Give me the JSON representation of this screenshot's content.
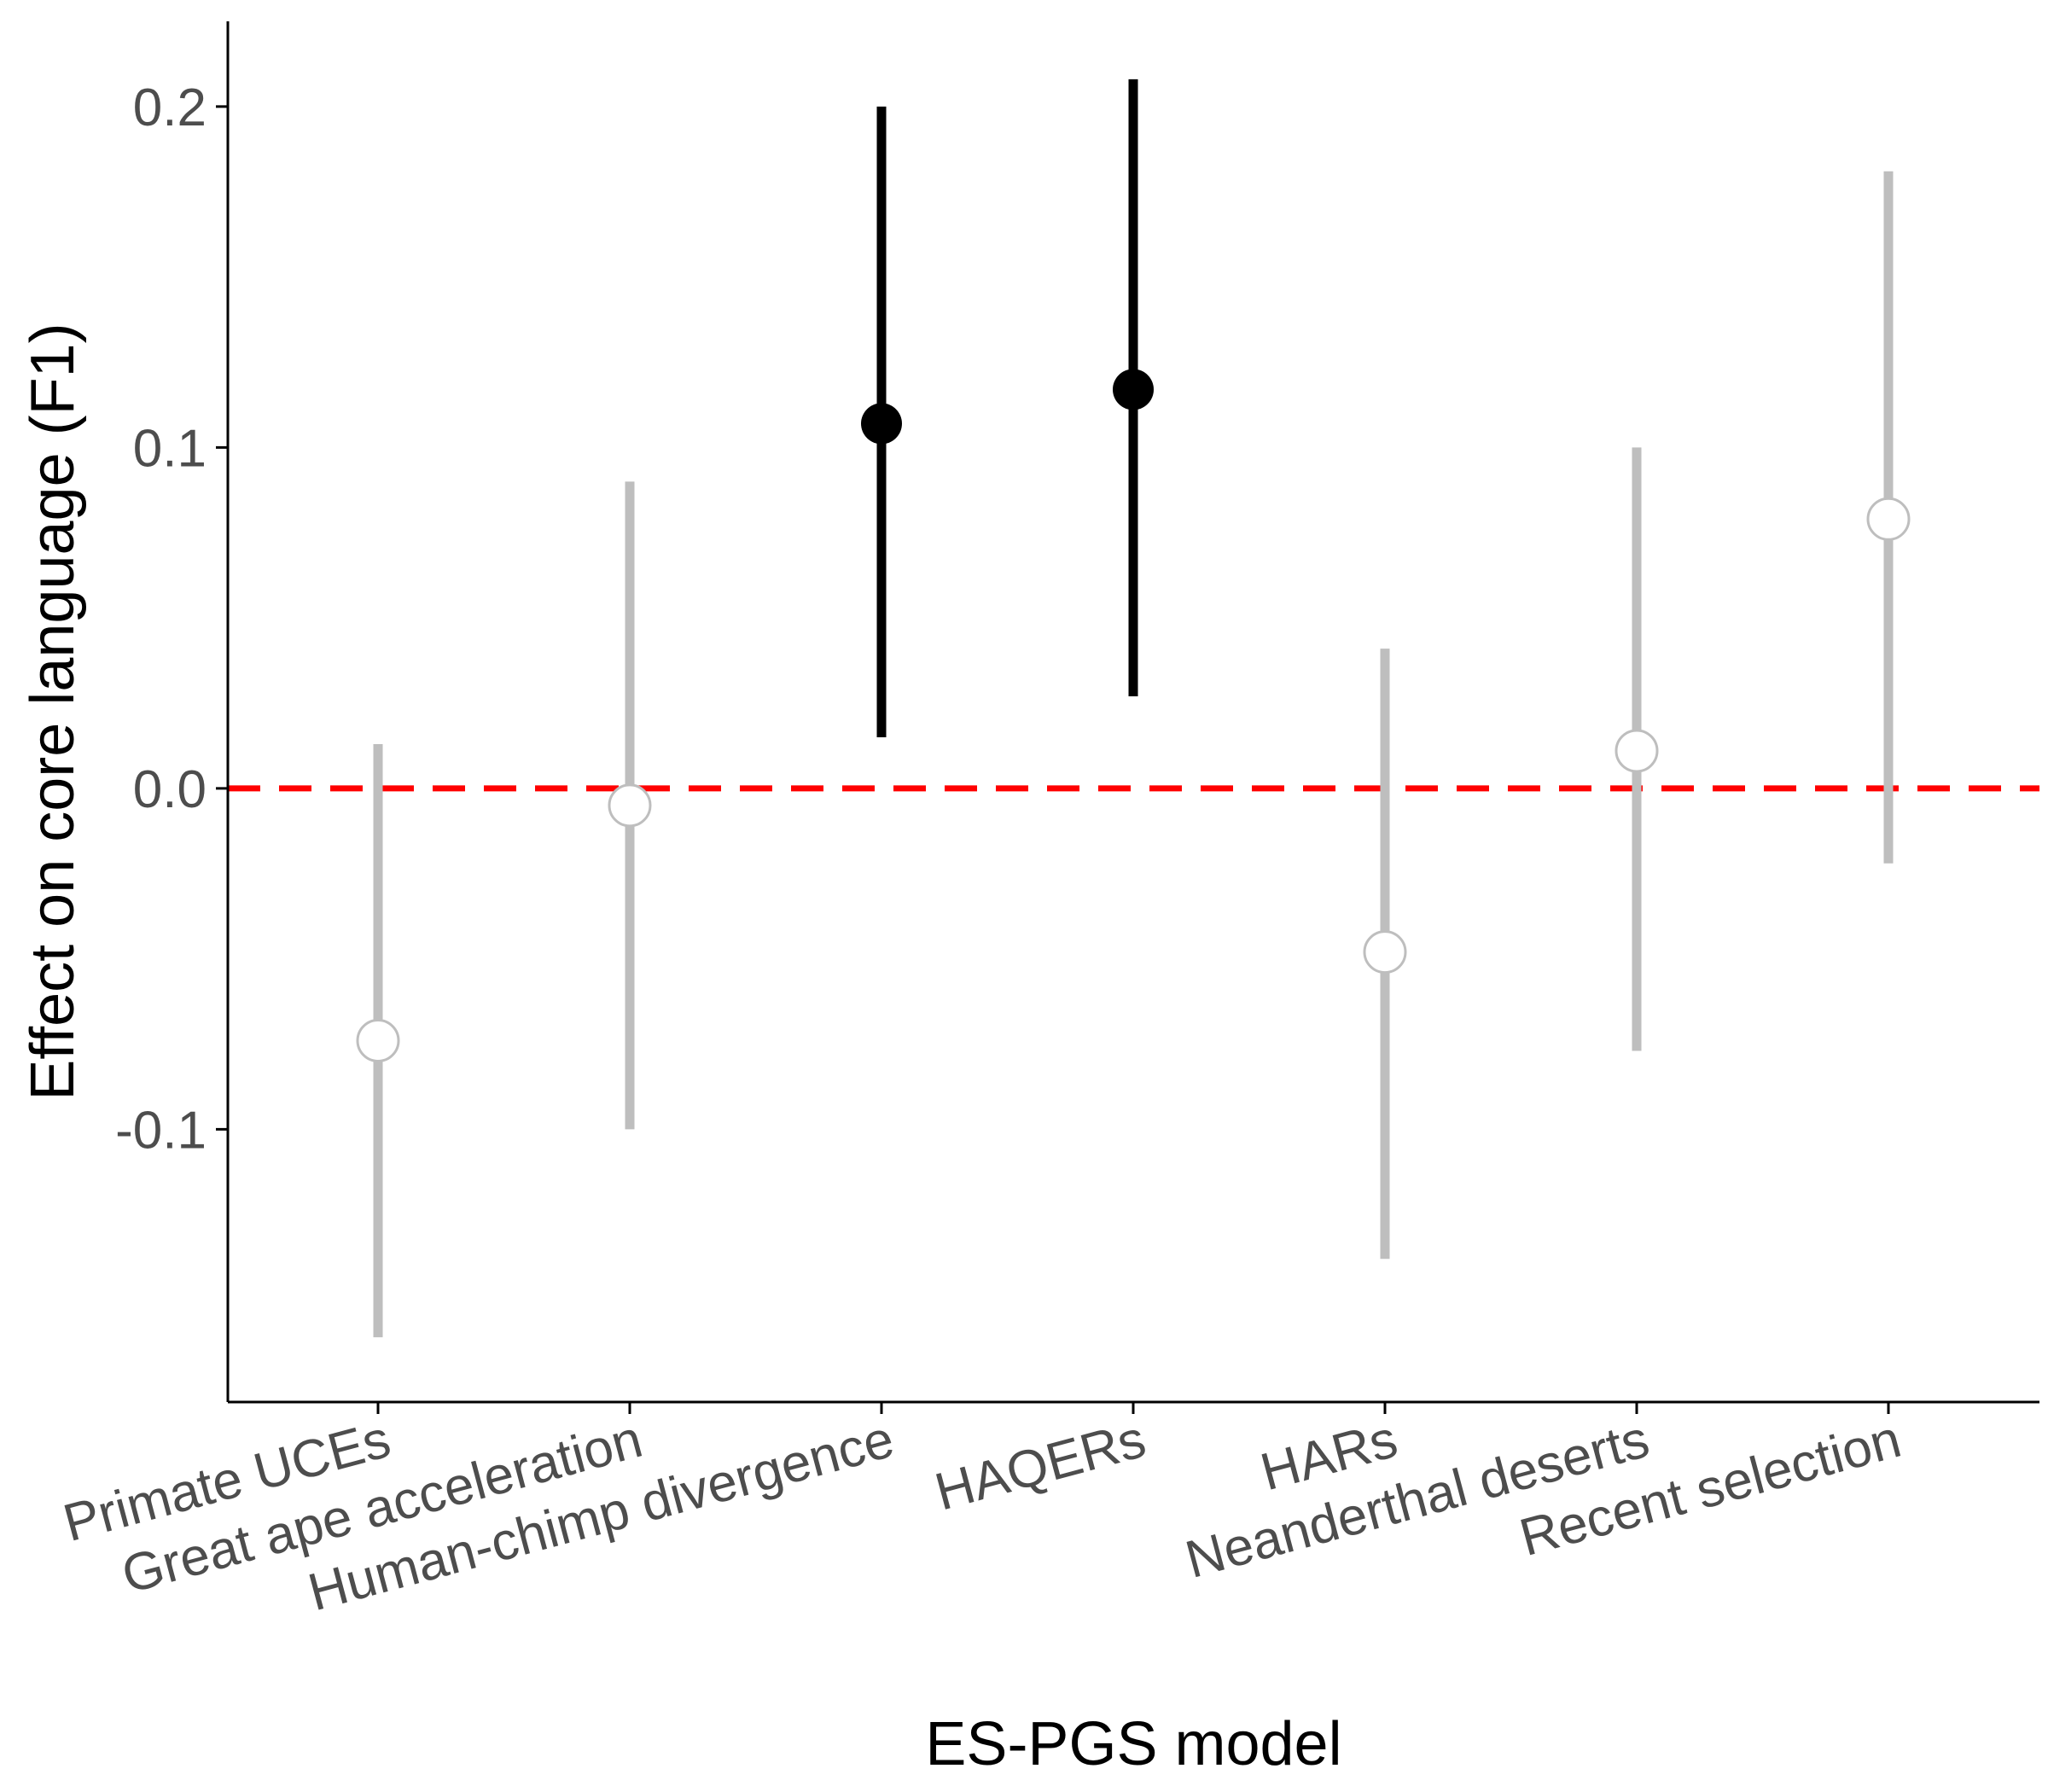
{
  "chart_data": {
    "type": "scatter",
    "xlabel": "ES-PGS model",
    "ylabel": "Effect on core language (F1)",
    "ylim": [
      -0.18,
      0.225
    ],
    "yticks": [
      -0.1,
      0.0,
      0.1,
      0.2
    ],
    "ytick_labels": [
      "-0.1",
      "0.0",
      "0.1",
      "0.2"
    ],
    "categories": [
      "Primate UCEs",
      "Great ape acceleration",
      "Human-chimp divergence",
      "HAQERs",
      "HARs",
      "Neanderthal deserts",
      "Recent selection"
    ],
    "estimates": [
      -0.074,
      -0.005,
      0.107,
      0.117,
      -0.048,
      0.011,
      0.079
    ],
    "lower": [
      -0.161,
      -0.1,
      0.015,
      0.027,
      -0.138,
      -0.077,
      -0.022
    ],
    "upper": [
      0.013,
      0.09,
      0.2,
      0.208,
      0.041,
      0.1,
      0.181
    ],
    "significant": [
      false,
      false,
      true,
      true,
      false,
      false,
      false
    ],
    "reference_line": {
      "y": 0,
      "color": "#ff0000",
      "style": "dashed"
    },
    "colors": {
      "significant": "#000000",
      "nonsignificant": "#bebebe",
      "axis": "#000000"
    },
    "grid": false
  }
}
